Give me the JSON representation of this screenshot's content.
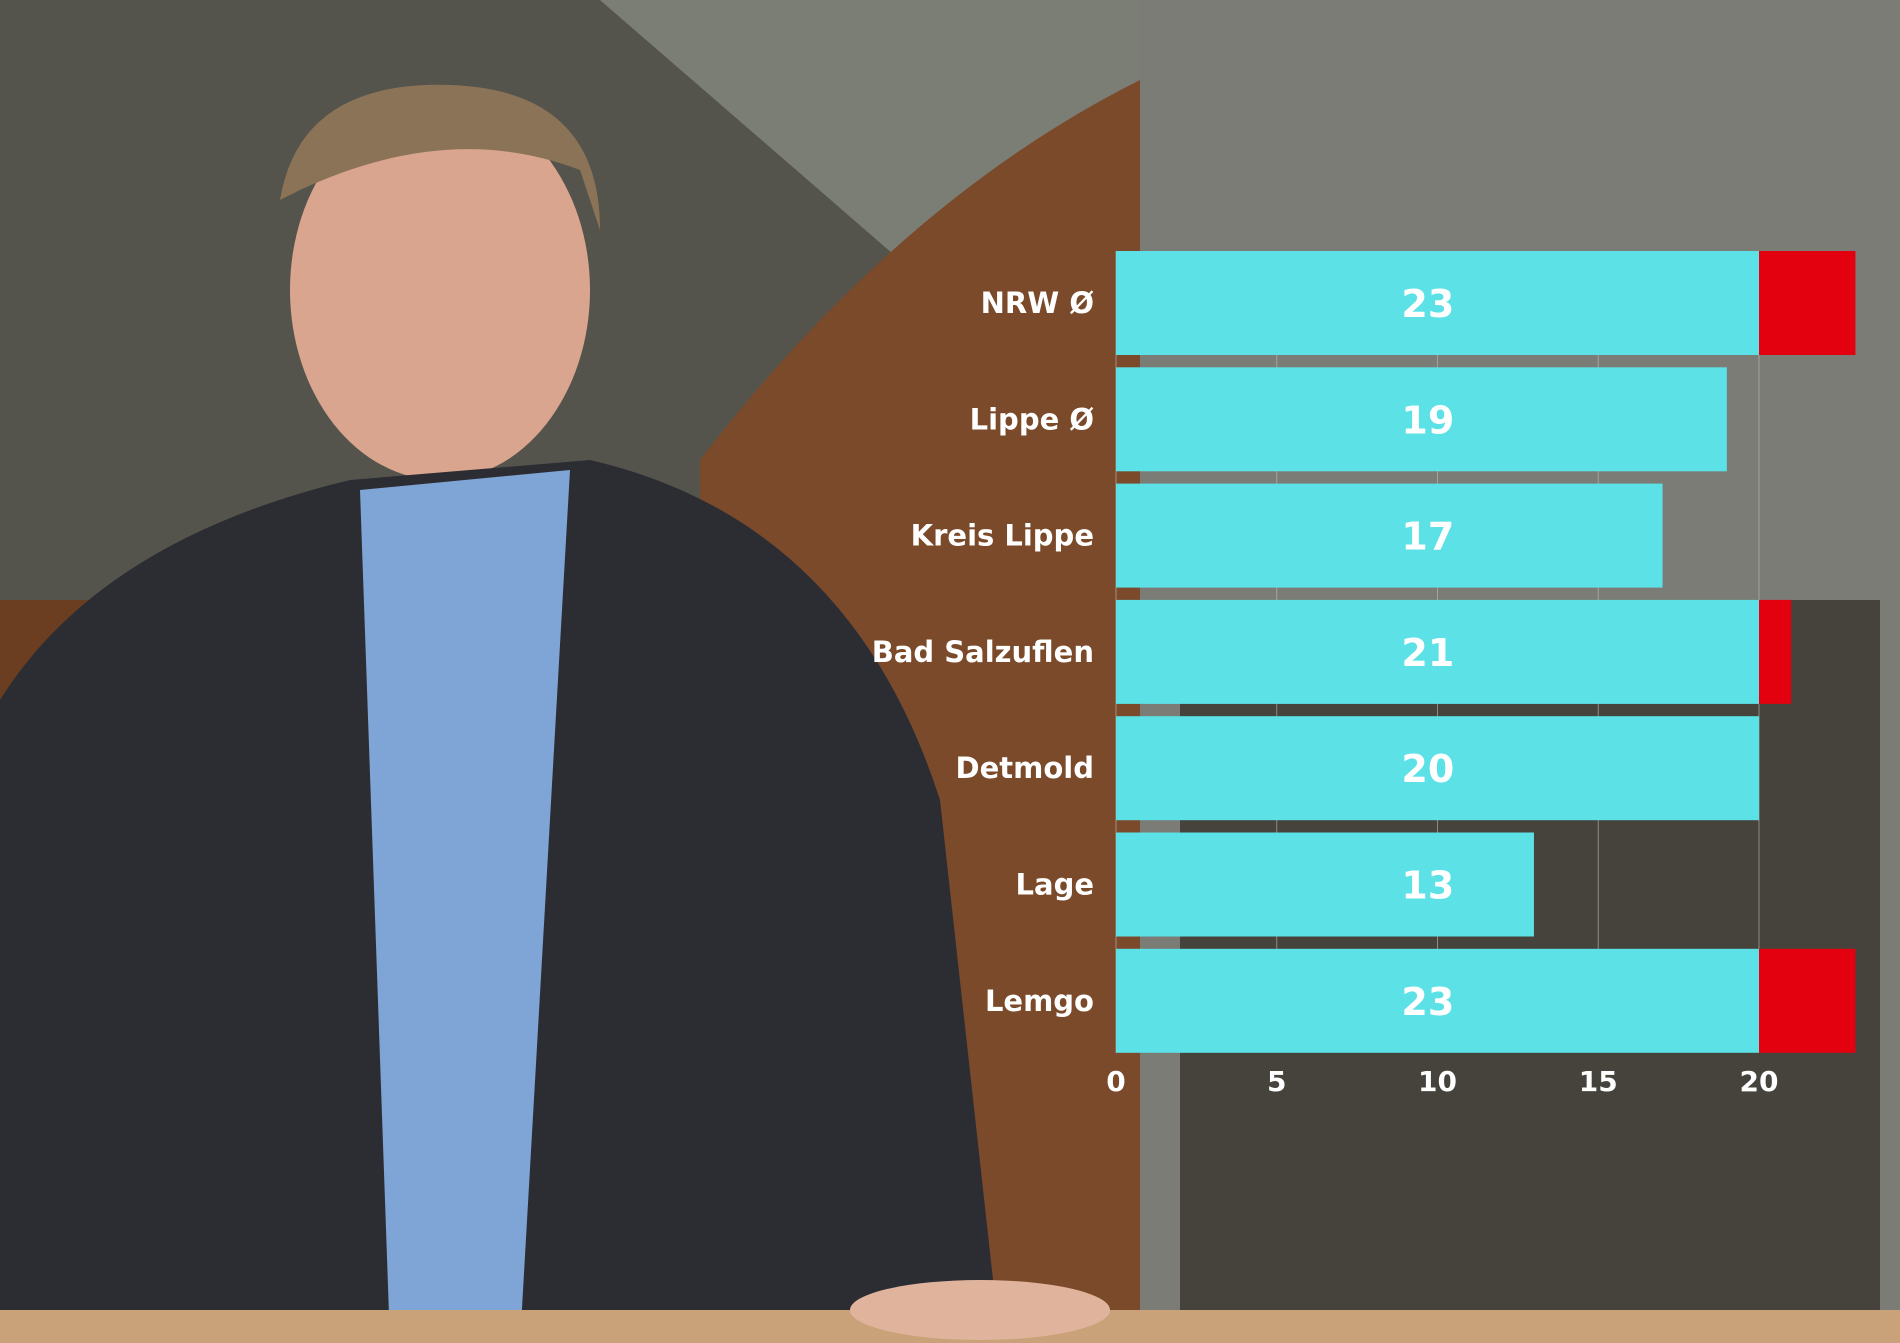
{
  "chart_data": {
    "type": "bar",
    "orientation": "horizontal",
    "categories": [
      "NRW Ø",
      "Lippe Ø",
      "Kreis Lippe",
      "Bad Salzuflen",
      "Detmold",
      "Lage",
      "Lemgo"
    ],
    "values": [
      23,
      19,
      17,
      21,
      20,
      13,
      23
    ],
    "threshold": 20,
    "xlim": [
      0,
      23
    ],
    "xticks": [
      0,
      5,
      10,
      15,
      20
    ],
    "grid": true,
    "colors": {
      "bar": "#5ce1e6",
      "above_threshold": "#e3000f",
      "text": "#ffffff"
    },
    "title": "",
    "xlabel": "",
    "ylabel": ""
  }
}
